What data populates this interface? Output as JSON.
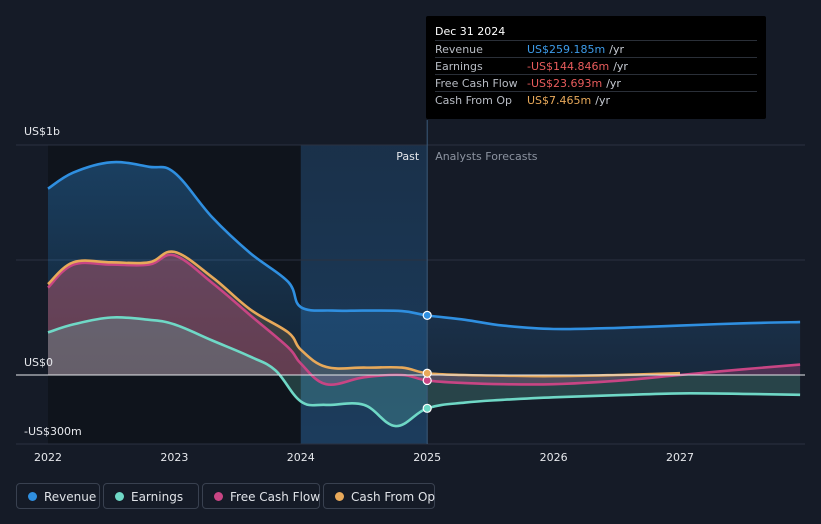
{
  "colors": {
    "background": "#151b27",
    "revenue": "#2f8fe0",
    "earnings": "#6fd8c6",
    "free_cash_flow": "#c84584",
    "cash_from_op": "#e8a95a",
    "past_highlight": "#1b3550"
  },
  "chart_data": {
    "type": "area",
    "title": "",
    "xlabel": "",
    "ylabel": "",
    "units": "US$ millions",
    "xlim": [
      2021.75,
      2027.95
    ],
    "ylim": [
      -300,
      1000
    ],
    "y_labels": [
      {
        "value": 1000,
        "text": "US$1b"
      },
      {
        "value": 0,
        "text": "US$0"
      },
      {
        "value": -300,
        "text": "-US$300m"
      }
    ],
    "x_ticks": [
      {
        "value": 2022,
        "text": "2022"
      },
      {
        "value": 2023,
        "text": "2023"
      },
      {
        "value": 2024,
        "text": "2024"
      },
      {
        "value": 2025,
        "text": "2025"
      },
      {
        "value": 2026,
        "text": "2026"
      },
      {
        "value": 2027,
        "text": "2027"
      }
    ],
    "past_region": [
      2024,
      2025
    ],
    "divider_x": 2025,
    "past_label": "Past",
    "forecast_label": "Analysts Forecasts",
    "series": [
      {
        "name": "Revenue",
        "key": "revenue",
        "color": "#2f8fe0",
        "x": [
          2022.0,
          2022.2,
          2022.5,
          2022.8,
          2023.0,
          2023.3,
          2023.6,
          2023.9,
          2024.0,
          2024.25,
          2024.5,
          2024.8,
          2025.0,
          2025.3,
          2025.6,
          2026.0,
          2026.5,
          2027.0,
          2027.5,
          2027.95
        ],
        "values": [
          810,
          880,
          925,
          905,
          880,
          685,
          530,
          405,
          295,
          280,
          280,
          278,
          259.185,
          240,
          215,
          200,
          205,
          215,
          225,
          230
        ]
      },
      {
        "name": "Earnings",
        "key": "earnings",
        "color": "#6fd8c6",
        "x": [
          2022.0,
          2022.2,
          2022.5,
          2022.8,
          2023.0,
          2023.3,
          2023.6,
          2023.8,
          2024.0,
          2024.2,
          2024.5,
          2024.75,
          2025.0,
          2025.3,
          2025.6,
          2026.0,
          2026.5,
          2027.0,
          2027.5,
          2027.95
        ],
        "values": [
          185,
          220,
          250,
          240,
          220,
          150,
          80,
          20,
          -115,
          -130,
          -130,
          -222,
          -144.846,
          -120,
          -108,
          -97,
          -88,
          -80,
          -82,
          -86
        ]
      },
      {
        "name": "Free Cash Flow",
        "key": "free_cash_flow",
        "color": "#c84584",
        "x": [
          2022.0,
          2022.2,
          2022.5,
          2022.8,
          2023.0,
          2023.3,
          2023.6,
          2023.9,
          2024.0,
          2024.2,
          2024.5,
          2024.8,
          2025.0,
          2025.3,
          2025.6,
          2026.0,
          2026.5,
          2027.0,
          2027.5,
          2027.95
        ],
        "values": [
          380,
          480,
          480,
          480,
          520,
          400,
          260,
          120,
          50,
          -40,
          -10,
          0,
          -23.693,
          -35,
          -40,
          -40,
          -25,
          0,
          25,
          45
        ]
      },
      {
        "name": "Cash From Op",
        "key": "cash_from_op",
        "color": "#e8a95a",
        "x": [
          2022.0,
          2022.2,
          2022.5,
          2022.8,
          2023.0,
          2023.3,
          2023.6,
          2023.9,
          2024.0,
          2024.2,
          2024.5,
          2024.8,
          2025.0,
          2025.3,
          2025.6,
          2026.0,
          2026.5,
          2027.0
        ],
        "values": [
          395,
          490,
          490,
          490,
          535,
          425,
          285,
          185,
          110,
          35,
          32,
          32,
          7.465,
          0,
          -3,
          -5,
          0,
          8
        ]
      }
    ]
  },
  "tooltip": {
    "date": "Dec 31 2024",
    "rows": [
      {
        "label": "Revenue",
        "value": "US$259.185m",
        "unit": "/yr",
        "color": "#3d9be9"
      },
      {
        "label": "Earnings",
        "value": "-US$144.846m",
        "unit": "/yr",
        "color": "#e85c5c"
      },
      {
        "label": "Free Cash Flow",
        "value": "-US$23.693m",
        "unit": "/yr",
        "color": "#e85c5c"
      },
      {
        "label": "Cash From Op",
        "value": "US$7.465m",
        "unit": "/yr",
        "color": "#e8a95a"
      }
    ]
  },
  "legend": {
    "items": [
      {
        "label": "Revenue",
        "color": "#2f8fe0"
      },
      {
        "label": "Earnings",
        "color": "#6fd8c6"
      },
      {
        "label": "Free Cash Flow",
        "color": "#c84584"
      },
      {
        "label": "Cash From Op",
        "color": "#e8a95a"
      }
    ]
  }
}
